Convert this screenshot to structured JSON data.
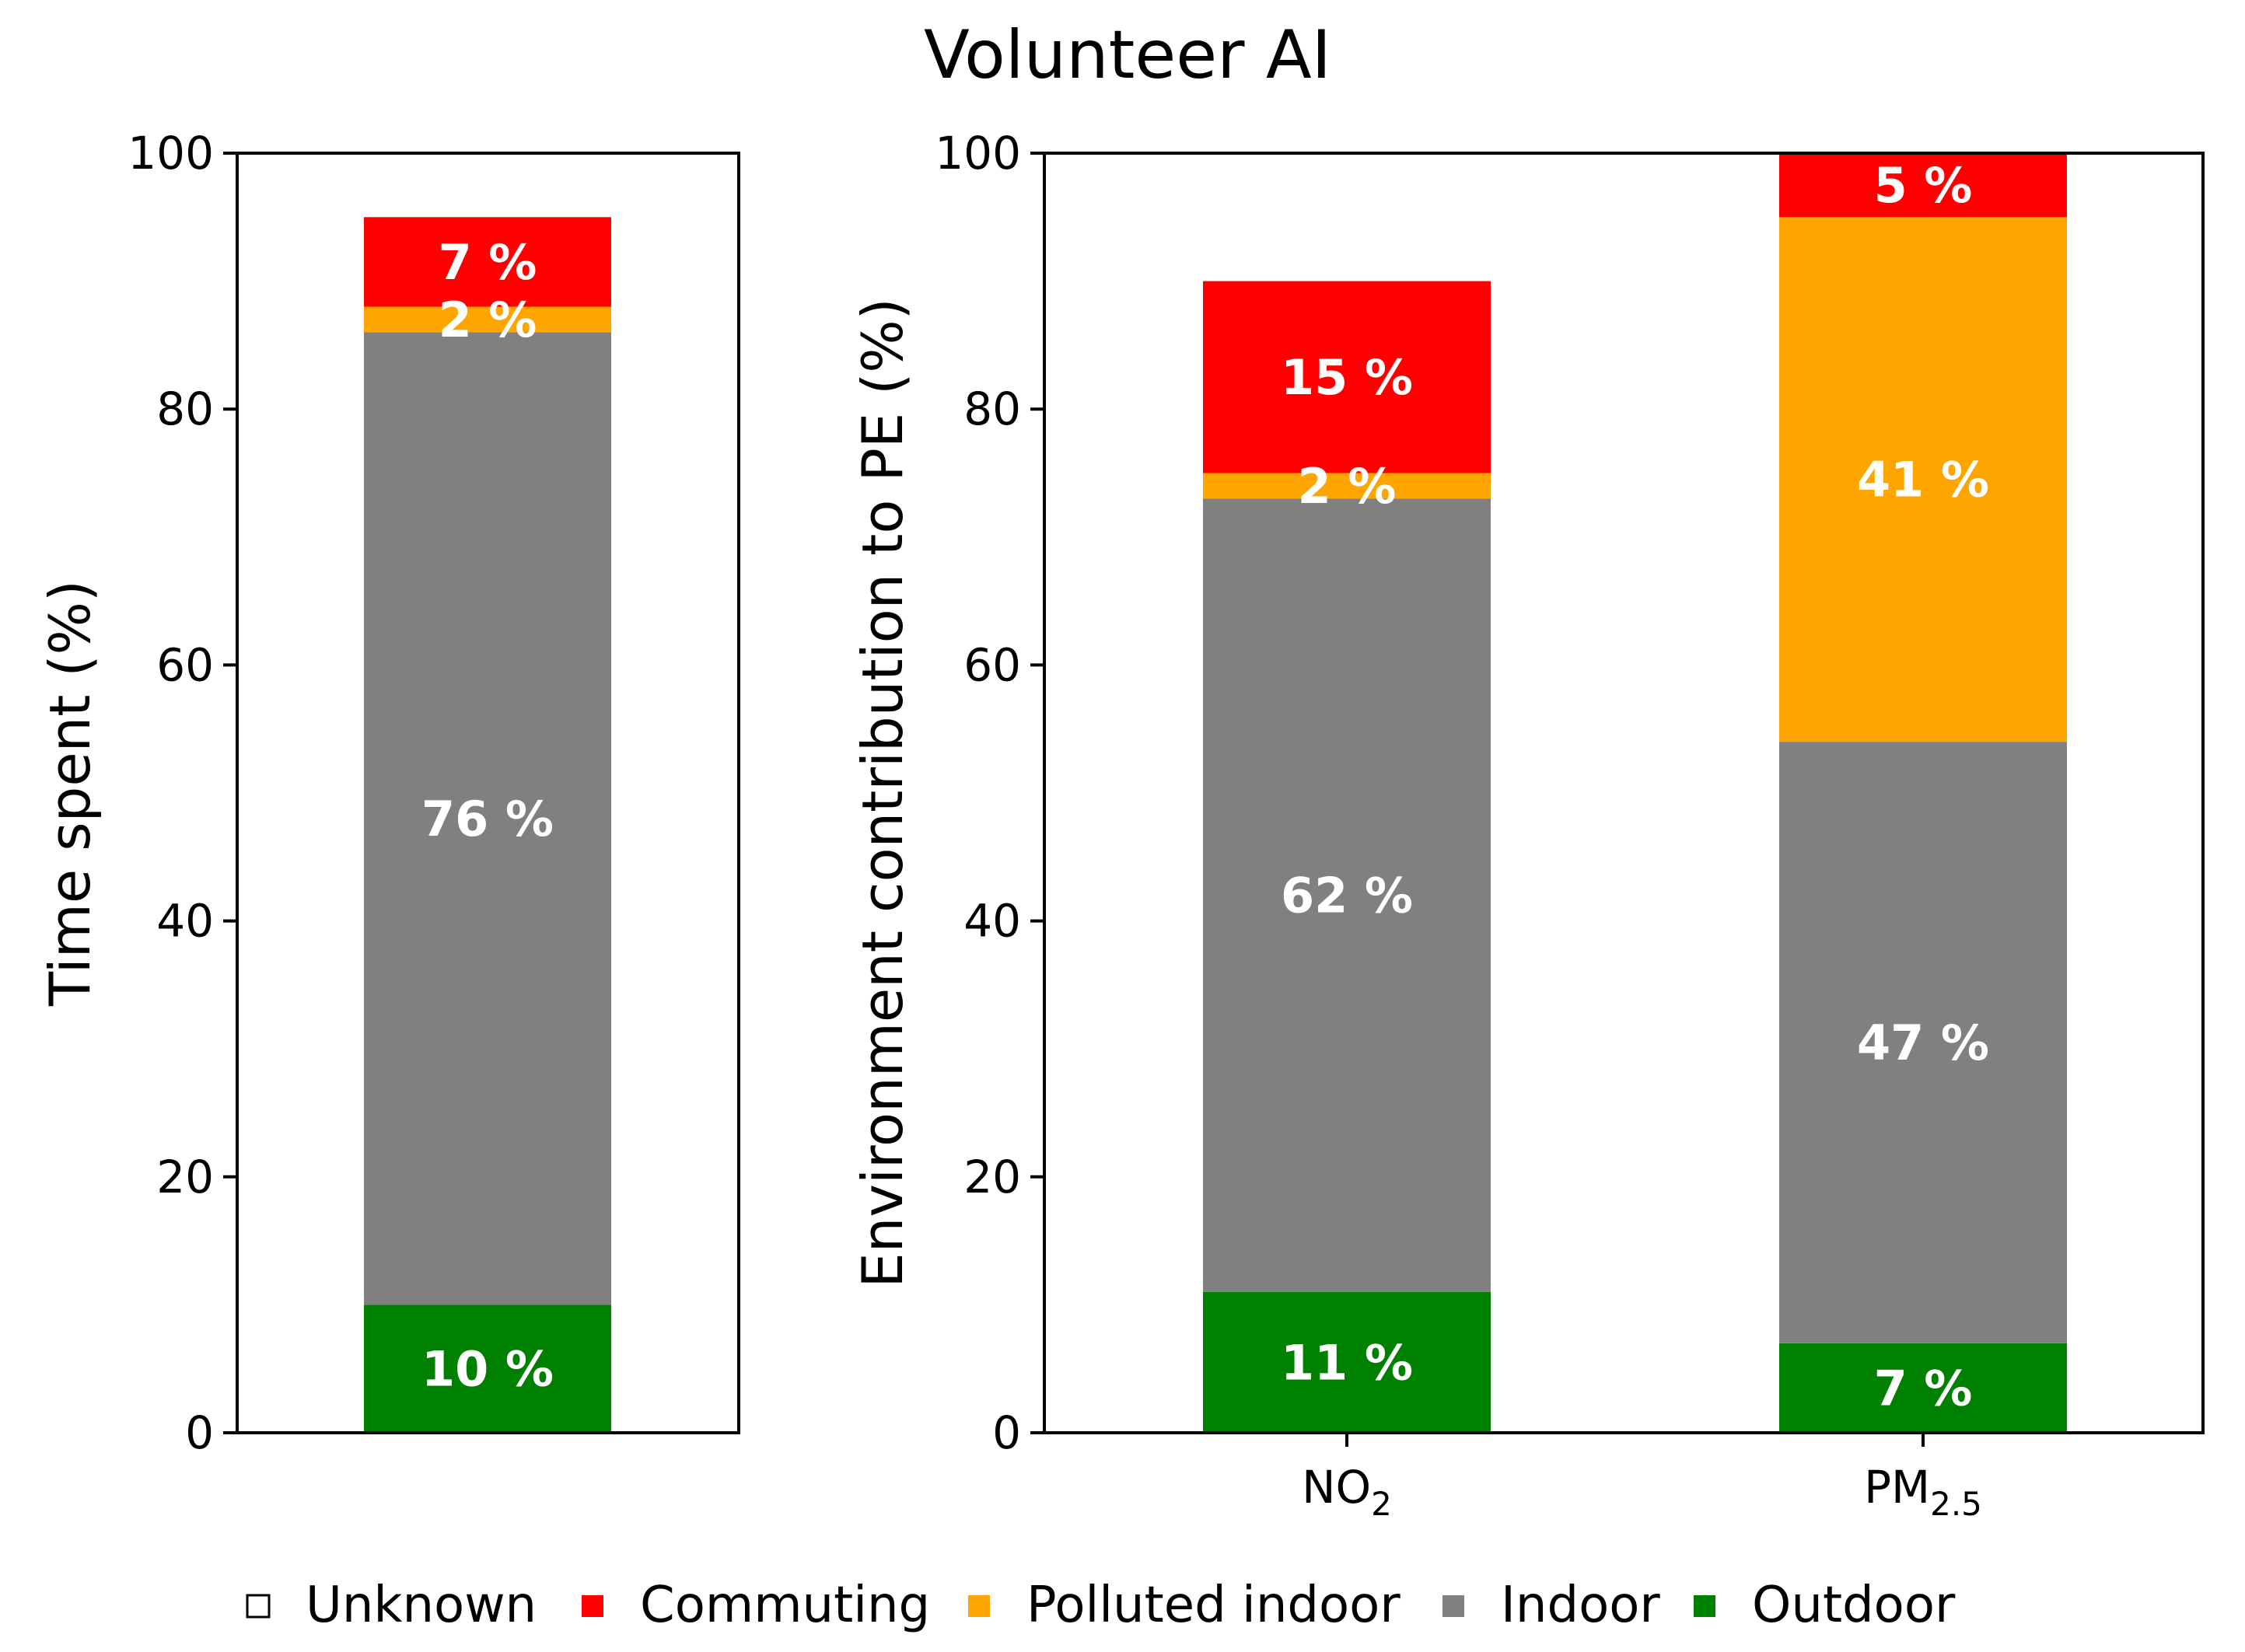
{
  "title": "Volunteer AI",
  "legend": [
    {
      "key": "unknown",
      "label": "Unknown",
      "color": "#ffffff"
    },
    {
      "key": "commuting",
      "label": "Commuting",
      "color": "#ff0000"
    },
    {
      "key": "polluted_indoor",
      "label": "Polluted indoor",
      "color": "#ffa500"
    },
    {
      "key": "indoor",
      "label": "Indoor",
      "color": "#808080"
    },
    {
      "key": "outdoor",
      "label": "Outdoor",
      "color": "#008000"
    }
  ],
  "chart_data": [
    {
      "type": "bar",
      "stacked": true,
      "ylabel": "Time spent (%)",
      "ylim": [
        0,
        100
      ],
      "yticks": [
        0,
        20,
        40,
        60,
        80,
        100
      ],
      "categories": [
        ""
      ],
      "series": [
        {
          "key": "outdoor",
          "values": [
            10
          ],
          "labels": [
            "10 %"
          ]
        },
        {
          "key": "indoor",
          "values": [
            76
          ],
          "labels": [
            "76 %"
          ]
        },
        {
          "key": "polluted_indoor",
          "values": [
            2
          ],
          "labels": [
            "2 %"
          ]
        },
        {
          "key": "commuting",
          "values": [
            7
          ],
          "labels": [
            "7 %"
          ]
        }
      ]
    },
    {
      "type": "bar",
      "stacked": true,
      "ylabel": "Environment contribution to PE (%)",
      "ylim": [
        0,
        100
      ],
      "yticks": [
        0,
        20,
        40,
        60,
        80,
        100
      ],
      "categories": [
        {
          "main": "NO",
          "sub": "2"
        },
        {
          "main": "PM",
          "sub": "2.5"
        }
      ],
      "series": [
        {
          "key": "outdoor",
          "values": [
            11,
            7
          ],
          "labels": [
            "11 %",
            "7 %"
          ]
        },
        {
          "key": "indoor",
          "values": [
            62,
            47
          ],
          "labels": [
            "62 %",
            "47 %"
          ]
        },
        {
          "key": "polluted_indoor",
          "values": [
            2,
            41
          ],
          "labels": [
            "2 %",
            "41 %"
          ]
        },
        {
          "key": "commuting",
          "values": [
            15,
            5
          ],
          "labels": [
            "15 %",
            "5 %"
          ]
        }
      ]
    }
  ]
}
